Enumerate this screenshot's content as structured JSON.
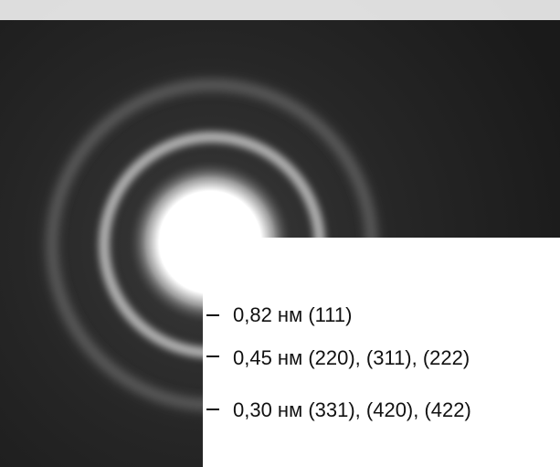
{
  "annotations": [
    "0,82 нм (111)",
    "0,45 нм (220), (311), (222)",
    "0,30 нм (331), (420), (422)"
  ]
}
